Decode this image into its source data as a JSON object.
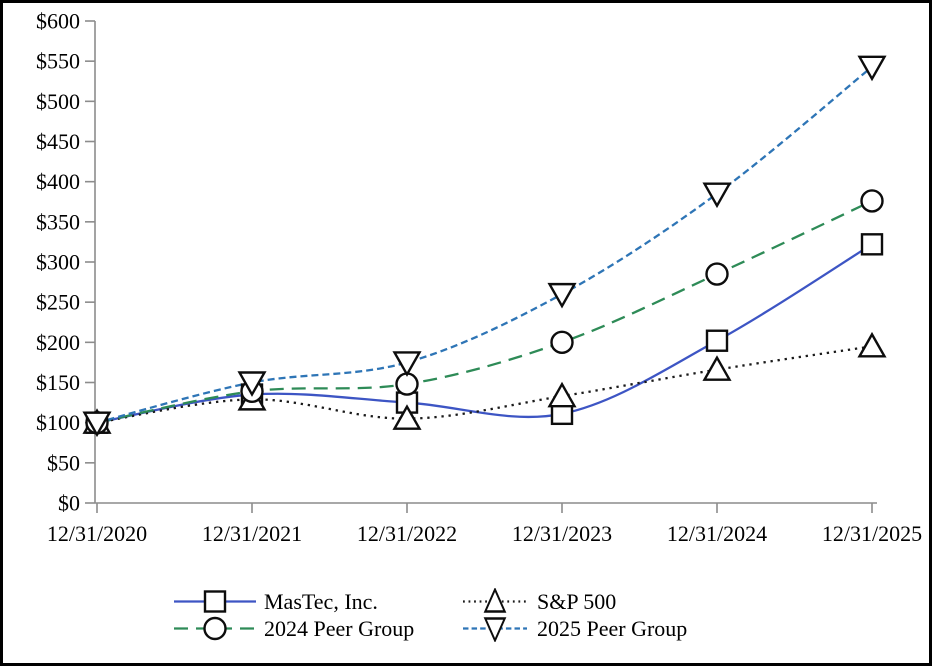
{
  "chart_data": {
    "type": "line",
    "title": "",
    "xlabel": "",
    "ylabel": "",
    "ylim": [
      0,
      600
    ],
    "grid": false,
    "legend_position": "bottom",
    "x_labels": [
      "12/31/2020",
      "12/31/2021",
      "12/31/2022",
      "12/31/2023",
      "12/31/2024",
      "12/31/2025"
    ],
    "y_ticks": [
      {
        "label": "$0",
        "value": 0
      },
      {
        "label": "$50",
        "value": 50
      },
      {
        "label": "$100",
        "value": 100
      },
      {
        "label": "$150",
        "value": 150
      },
      {
        "label": "$200",
        "value": 200
      },
      {
        "label": "$250",
        "value": 250
      },
      {
        "label": "$300",
        "value": 300
      },
      {
        "label": "$350",
        "value": 350
      },
      {
        "label": "$400",
        "value": 400
      },
      {
        "label": "$450",
        "value": 450
      },
      {
        "label": "$500",
        "value": 500
      },
      {
        "label": "$550",
        "value": 550
      },
      {
        "label": "$600",
        "value": 600
      }
    ],
    "series": [
      {
        "name": "MasTec, Inc.",
        "color": "#3D55C4",
        "line_style": "solid",
        "marker": "square",
        "values": [
          100,
          135,
          125,
          111,
          202,
          322
        ]
      },
      {
        "name": "S&P 500",
        "color": "#1A1A1A",
        "line_style": "dotted",
        "marker": "triangle-up",
        "values": [
          100,
          129,
          105,
          133,
          166,
          195
        ]
      },
      {
        "name": "2024 Peer Group",
        "color": "#2E8B57",
        "line_style": "dashed",
        "marker": "circle",
        "values": [
          100,
          139,
          148,
          200,
          285,
          376
        ]
      },
      {
        "name": "2025 Peer Group",
        "color": "#2E75B6",
        "line_style": "short-dash",
        "marker": "triangle-down",
        "values": [
          100,
          150,
          175,
          260,
          385,
          543
        ]
      }
    ],
    "axis_color": "#8C8C8C",
    "marker_stroke_color": "#0D0D0D"
  }
}
